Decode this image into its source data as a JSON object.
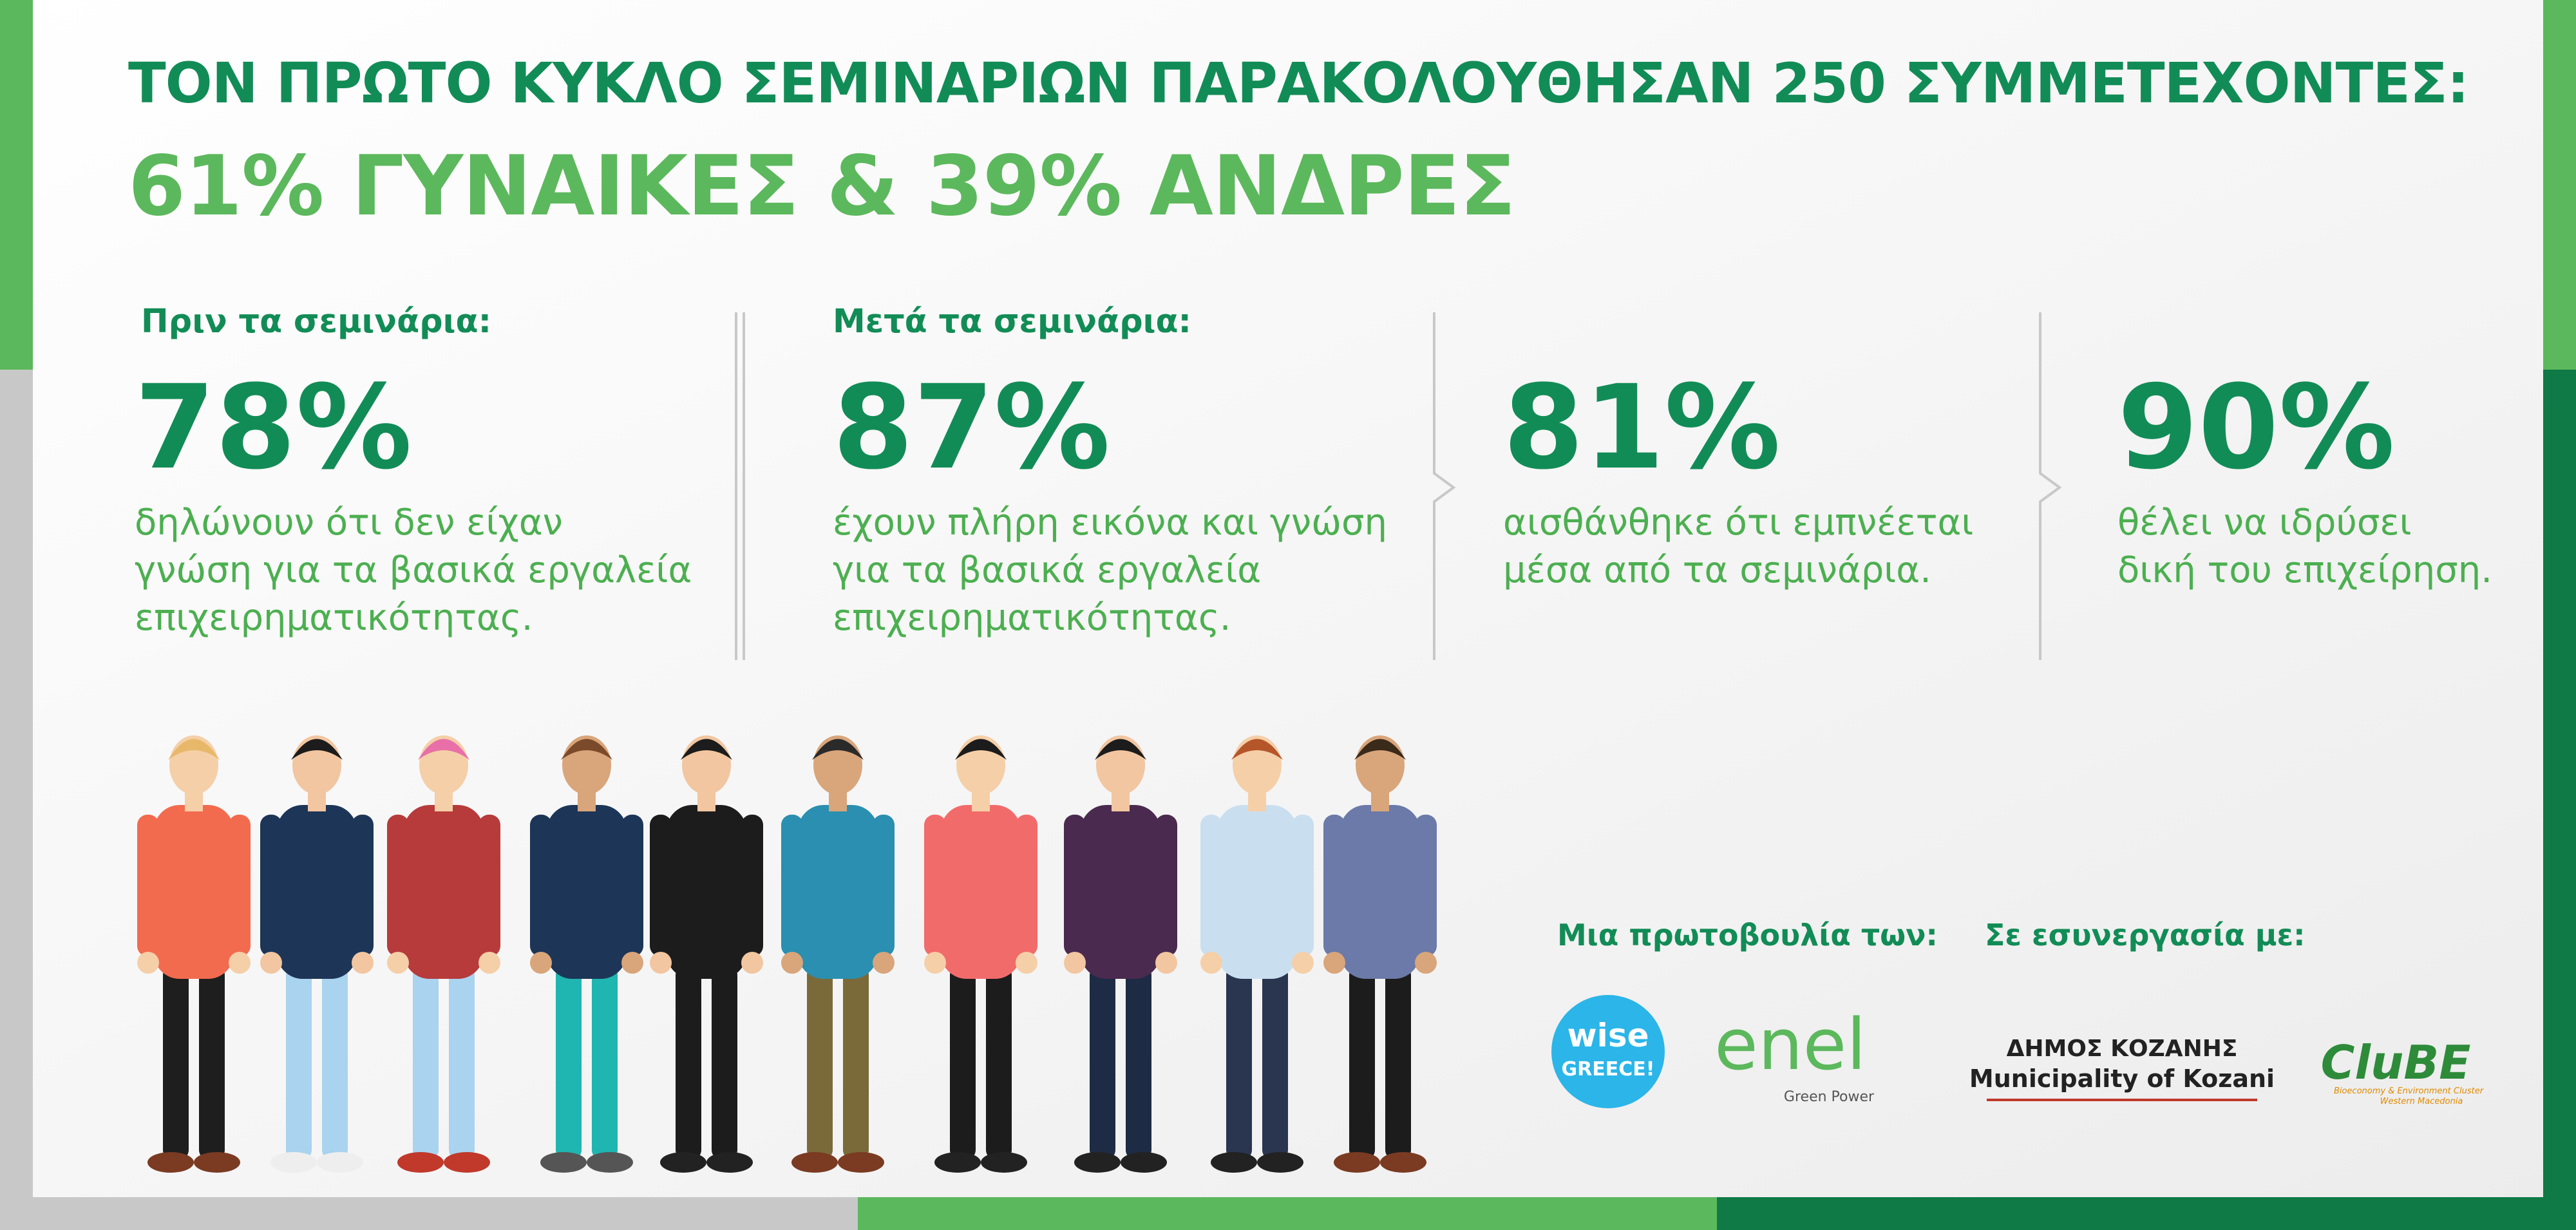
{
  "header": {
    "line1": "ΤΟΝ ΠΡΩΤΟ ΚΥΚΛΟ ΣΕΜΙΝΑΡΙΩΝ ΠΑΡΑΚΟΛΟΥΘΗΣΑΝ 250 ΣΥΜΜΕΤΕΧΟΝΤΕΣ:",
    "line2": "61% ΓΥΝΑΙΚΕΣ & 39% ΑΝΔΡΕΣ"
  },
  "sections": [
    {
      "label": "Πριν τα σεμινάρια:"
    },
    {
      "label": "Μετά τα σεμινάρια:"
    }
  ],
  "stats": [
    {
      "number": "78%",
      "lines": [
        "δηλώνουν ότι δεν είχαν",
        "γνώση για τα βασικά εργαλεία",
        "επιχειρηματικότητας."
      ]
    },
    {
      "number": "87%",
      "lines": [
        "έχουν πλήρη εικόνα και γνώση",
        "για τα βασικά εργαλεία",
        "επιχειρηματικότητας."
      ]
    },
    {
      "number": "81%",
      "lines": [
        "αισθάνθηκε ότι εμπνέεται",
        "μέσα από τα σεμινάρια."
      ]
    },
    {
      "number": "90%",
      "lines": [
        "θέλει να ιδρύσει",
        "δική του επιχείρηση."
      ]
    }
  ],
  "partners": {
    "initiative_label": "Μια πρωτοβουλία των:",
    "cooperation_label": "Σε εσυνεργασία με:",
    "wise": [
      "wise",
      "GREECE!"
    ],
    "enel": [
      "enel",
      "Green Power"
    ],
    "kozani": [
      "ΔΗΜΟΣ ΚΟΖΑΝΗΣ",
      "Municipality of Kozani"
    ],
    "clube": [
      "CluBE",
      "Bioeconomy & Environment Cluster",
      "Western Macedonia"
    ]
  }
}
